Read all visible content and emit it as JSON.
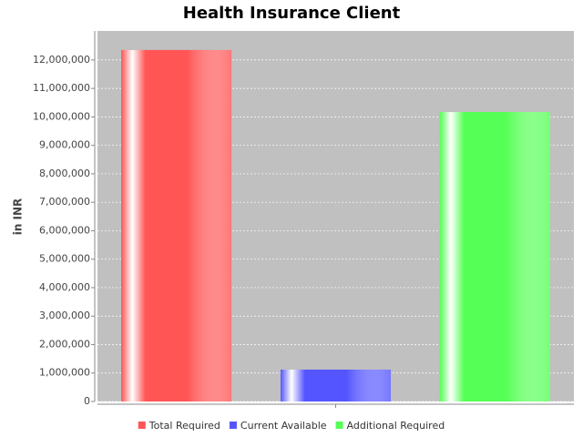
{
  "chart_data": {
    "type": "bar",
    "title": "Health Insurance Client",
    "y_label": "in INR",
    "categories": [
      null
    ],
    "series": [
      {
        "name": "Total Required",
        "color": "#ff5555",
        "values": [
          12350000
        ]
      },
      {
        "name": "Current Available",
        "color": "#5555ff",
        "values": [
          1120000
        ]
      },
      {
        "name": "Additional Required",
        "color": "#55ff55",
        "values": [
          10170000
        ]
      }
    ],
    "ylim": [
      0,
      13020000
    ],
    "yticks": [
      0,
      {
        "value": 1000000,
        "label": "1,000,000"
      },
      {
        "value": 2000000,
        "label": "2,000,000"
      },
      {
        "value": 3000000,
        "label": "3,000,000"
      },
      {
        "value": 4000000,
        "label": "4,000,000"
      },
      {
        "value": 5000000,
        "label": "5,000,000"
      },
      {
        "value": 6000000,
        "label": "6,000,000"
      },
      {
        "value": 7000000,
        "label": "7,000,000"
      },
      {
        "value": 8000000,
        "label": "8,000,000"
      },
      {
        "value": 9000000,
        "label": "9,000,000"
      },
      {
        "value": 10000000,
        "label": "10,000,000"
      },
      {
        "value": 11000000,
        "label": "11,000,000"
      },
      {
        "value": 12000000,
        "label": "12,000,000"
      }
    ],
    "grid": true,
    "legend": "bottom",
    "plot_background": "#c0c0c0"
  }
}
